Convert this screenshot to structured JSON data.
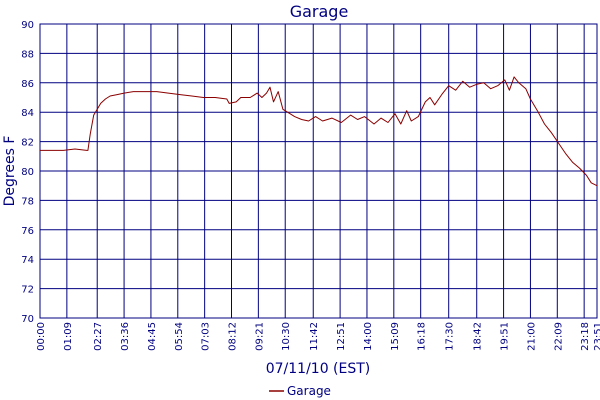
{
  "chart_data": {
    "type": "line",
    "title": "Garage",
    "xlabel": "07/11/10 (EST)",
    "ylabel": "Degrees F",
    "x_unit": "hours",
    "xlim": [
      0,
      23.85
    ],
    "ylim": [
      70,
      90
    ],
    "y_ticks": [
      70,
      72,
      74,
      76,
      78,
      80,
      82,
      84,
      86,
      88,
      90
    ],
    "x_ticks": [
      {
        "value": 0.0,
        "label": "00:00"
      },
      {
        "value": 1.15,
        "label": "01:09"
      },
      {
        "value": 2.45,
        "label": "02:27"
      },
      {
        "value": 3.6,
        "label": "03:36"
      },
      {
        "value": 4.75,
        "label": "04:45"
      },
      {
        "value": 5.9,
        "label": "05:54"
      },
      {
        "value": 7.05,
        "label": "07:03"
      },
      {
        "value": 8.2,
        "label": "08:12"
      },
      {
        "value": 9.35,
        "label": "09:21"
      },
      {
        "value": 10.5,
        "label": "10:30"
      },
      {
        "value": 11.7,
        "label": "11:42"
      },
      {
        "value": 12.85,
        "label": "12:51"
      },
      {
        "value": 14.0,
        "label": "14:00"
      },
      {
        "value": 15.15,
        "label": "15:09"
      },
      {
        "value": 16.3,
        "label": "16:18"
      },
      {
        "value": 17.5,
        "label": "17:30"
      },
      {
        "value": 18.7,
        "label": "18:42"
      },
      {
        "value": 19.85,
        "label": "19:51"
      },
      {
        "value": 21.0,
        "label": "21:00"
      },
      {
        "value": 22.15,
        "label": "22:09"
      },
      {
        "value": 23.3,
        "label": "23:18"
      },
      {
        "value": 23.85,
        "label": "23:51"
      }
    ],
    "grid": true,
    "legend": "bottom-center",
    "colors": {
      "line": "#8b0000",
      "text": "#000080",
      "grid": "#000080",
      "background": "#ffffff"
    },
    "series": [
      {
        "name": "Garage",
        "x": [
          0.0,
          0.5,
          1.0,
          1.5,
          2.0,
          2.05,
          2.15,
          2.3,
          2.45,
          2.6,
          2.8,
          3.0,
          3.3,
          3.6,
          4.0,
          4.5,
          5.0,
          5.5,
          6.0,
          6.5,
          7.0,
          7.5,
          8.0,
          8.1,
          8.4,
          8.6,
          9.0,
          9.3,
          9.5,
          9.7,
          9.85,
          10.0,
          10.2,
          10.4,
          10.6,
          10.9,
          11.2,
          11.5,
          11.8,
          12.1,
          12.5,
          12.9,
          13.3,
          13.6,
          13.9,
          14.3,
          14.6,
          14.9,
          15.2,
          15.45,
          15.7,
          15.9,
          16.2,
          16.5,
          16.7,
          16.9,
          17.2,
          17.5,
          17.8,
          18.1,
          18.4,
          18.7,
          19.0,
          19.3,
          19.6,
          19.9,
          20.1,
          20.3,
          20.5,
          20.8,
          21.0,
          21.3,
          21.6,
          21.9,
          22.2,
          22.5,
          22.8,
          23.1,
          23.4,
          23.6,
          23.85
        ],
        "y": [
          81.4,
          81.4,
          81.4,
          81.5,
          81.4,
          81.4,
          82.5,
          83.8,
          84.2,
          84.6,
          84.9,
          85.1,
          85.2,
          85.3,
          85.4,
          85.4,
          85.4,
          85.3,
          85.2,
          85.1,
          85.0,
          85.0,
          84.9,
          84.6,
          84.7,
          85.0,
          85.0,
          85.3,
          85.0,
          85.3,
          85.7,
          84.7,
          85.4,
          84.2,
          84.0,
          83.7,
          83.5,
          83.4,
          83.7,
          83.4,
          83.6,
          83.3,
          83.8,
          83.5,
          83.7,
          83.2,
          83.6,
          83.3,
          83.9,
          83.2,
          84.1,
          83.4,
          83.7,
          84.7,
          85.0,
          84.5,
          85.2,
          85.8,
          85.5,
          86.1,
          85.7,
          85.9,
          86.0,
          85.6,
          85.8,
          86.2,
          85.5,
          86.4,
          86.0,
          85.6,
          84.9,
          84.1,
          83.2,
          82.6,
          81.9,
          81.2,
          80.6,
          80.2,
          79.7,
          79.2,
          79.0
        ]
      }
    ]
  }
}
